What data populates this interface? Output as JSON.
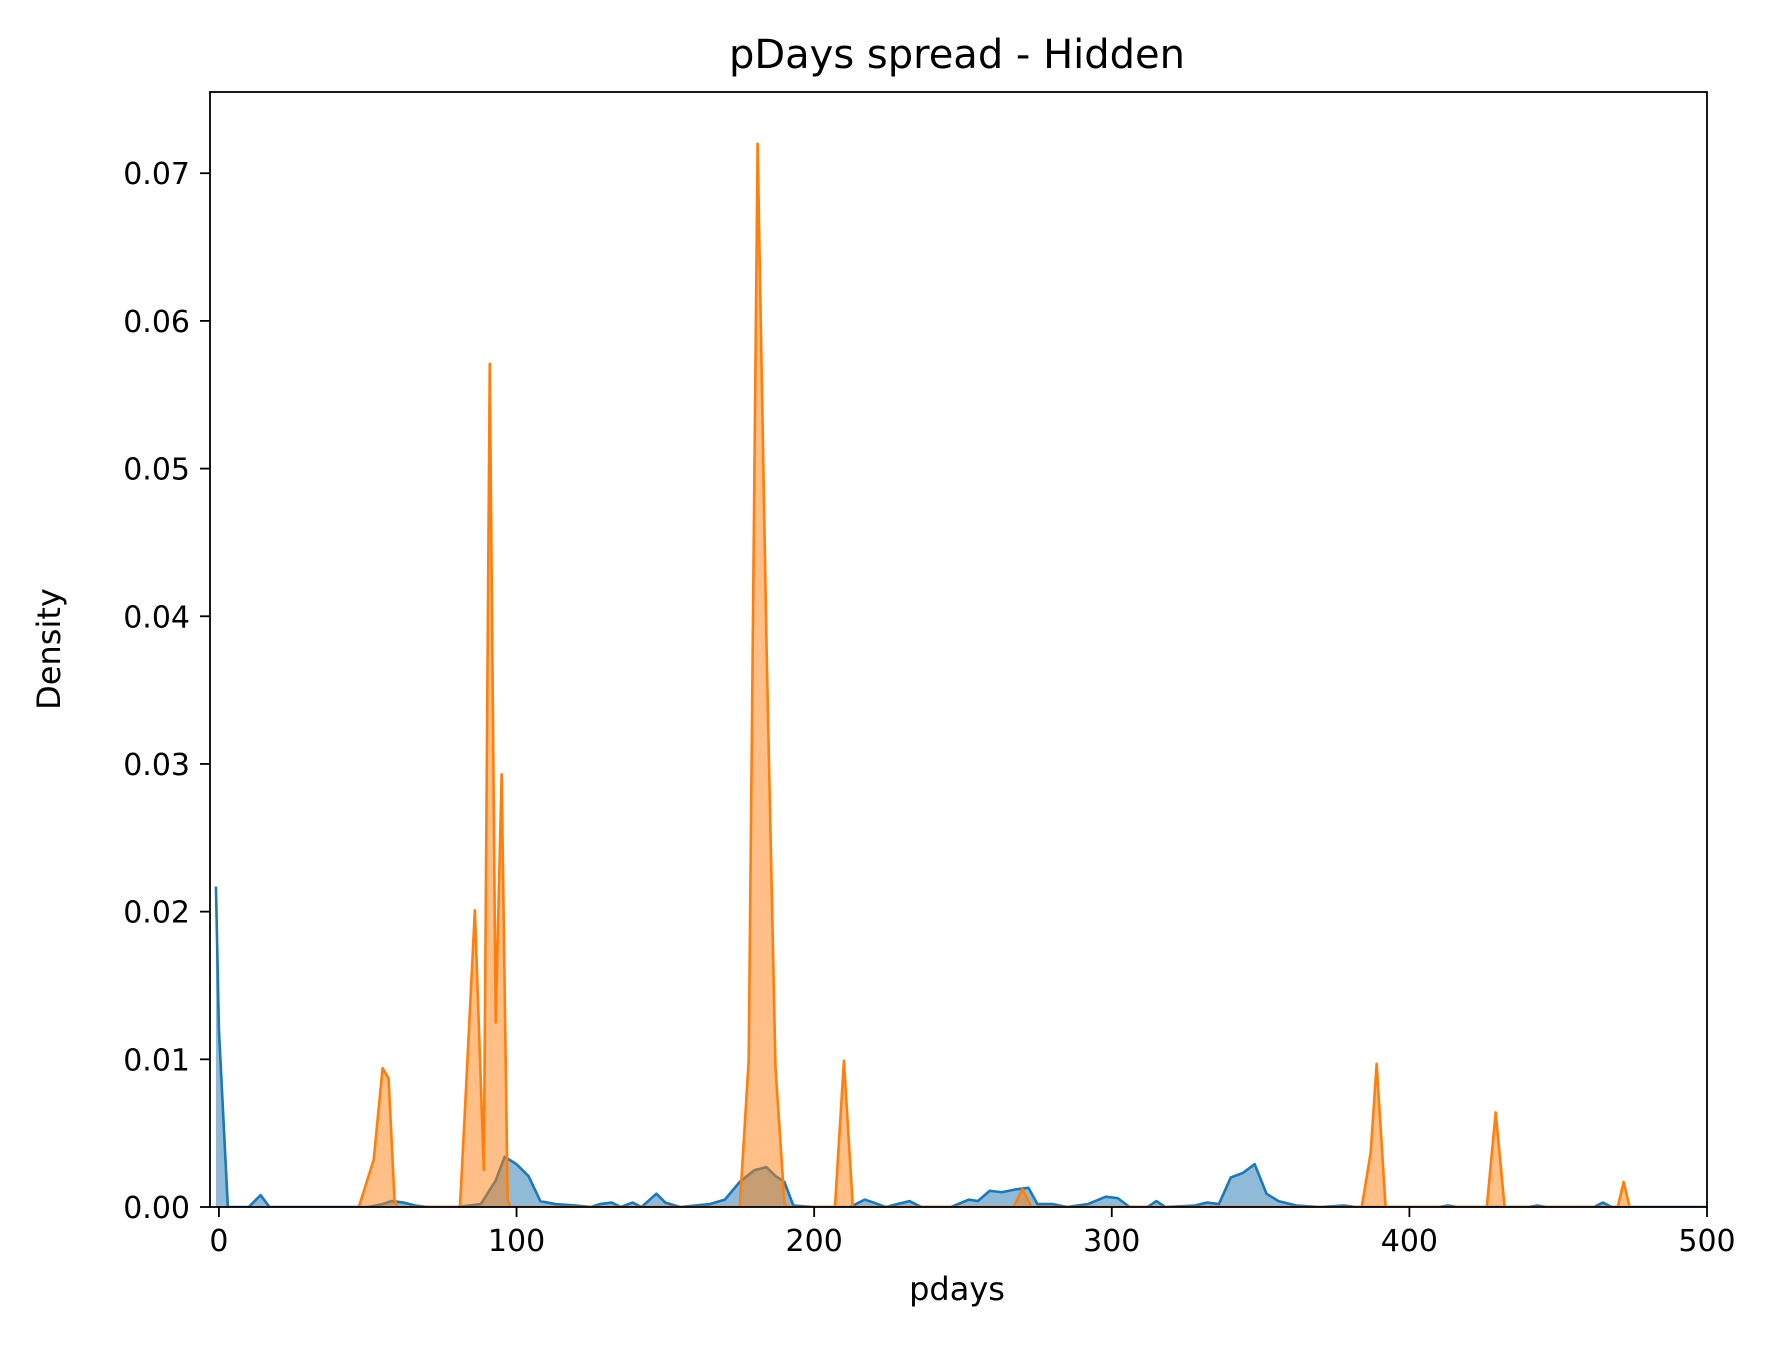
{
  "chart_data": {
    "type": "area",
    "title": "pDays spread - Hidden",
    "xlabel": "pdays",
    "ylabel": "Density",
    "xlim": [
      -3,
      500
    ],
    "ylim": [
      0,
      0.0755
    ],
    "xticks": [
      0,
      100,
      200,
      300,
      400,
      500
    ],
    "xtick_labels": [
      "0",
      "100",
      "200",
      "300",
      "400",
      "500"
    ],
    "yticks": [
      0,
      0.01,
      0.02,
      0.03,
      0.04,
      0.05,
      0.06,
      0.07
    ],
    "ytick_labels": [
      "0.00",
      "0.01",
      "0.02",
      "0.03",
      "0.04",
      "0.05",
      "0.06",
      "0.07"
    ],
    "grid": false,
    "series": [
      {
        "color": "#1f77b4",
        "fill_opacity": 0.5,
        "points": [
          [
            -1,
            0.0217
          ],
          [
            0,
            0.012
          ],
          [
            3,
            0
          ],
          [
            10,
            0
          ],
          [
            12,
            0.0004
          ],
          [
            14,
            0.0008
          ],
          [
            17,
            0
          ],
          [
            40,
            0
          ],
          [
            50,
            0
          ],
          [
            55,
            0.0002
          ],
          [
            58,
            0.0004
          ],
          [
            62,
            0.0003
          ],
          [
            66,
            0.0001
          ],
          [
            70,
            0
          ],
          [
            80,
            0
          ],
          [
            88,
            0.0002
          ],
          [
            93,
            0.0018
          ],
          [
            96,
            0.0034
          ],
          [
            100,
            0.0029
          ],
          [
            104,
            0.0021
          ],
          [
            108,
            0.0004
          ],
          [
            113,
            0.0002
          ],
          [
            120,
            0.0001
          ],
          [
            125,
            0
          ],
          [
            128,
            0.0002
          ],
          [
            132,
            0.0003
          ],
          [
            135,
            0
          ],
          [
            139,
            0.0003
          ],
          [
            142,
            0
          ],
          [
            147,
            0.0009
          ],
          [
            150,
            0.0003
          ],
          [
            155,
            0
          ],
          [
            165,
            0.0002
          ],
          [
            170,
            0.0005
          ],
          [
            175,
            0.0017
          ],
          [
            180,
            0.0025
          ],
          [
            184,
            0.0027
          ],
          [
            187,
            0.0021
          ],
          [
            190,
            0.0017
          ],
          [
            193,
            0.0001
          ],
          [
            200,
            0
          ],
          [
            212,
            0
          ],
          [
            217,
            0.0005
          ],
          [
            220,
            0.0003
          ],
          [
            224,
            0
          ],
          [
            232,
            0.0004
          ],
          [
            236,
            0
          ],
          [
            246,
            0
          ],
          [
            252,
            0.0005
          ],
          [
            255,
            0.0004
          ],
          [
            259,
            0.0011
          ],
          [
            263,
            0.001
          ],
          [
            268,
            0.0012
          ],
          [
            272,
            0.0013
          ],
          [
            275,
            0.0002
          ],
          [
            280,
            0.0002
          ],
          [
            285,
            0
          ],
          [
            292,
            0.0002
          ],
          [
            298,
            0.0007
          ],
          [
            302,
            0.0006
          ],
          [
            306,
            0
          ],
          [
            312,
            0
          ],
          [
            315,
            0.0004
          ],
          [
            318,
            0
          ],
          [
            328,
            0.0001
          ],
          [
            332,
            0.0003
          ],
          [
            336,
            0.0002
          ],
          [
            340,
            0.002
          ],
          [
            344,
            0.0023
          ],
          [
            348,
            0.0029
          ],
          [
            352,
            0.0009
          ],
          [
            356,
            0.0004
          ],
          [
            362,
            0.0001
          ],
          [
            370,
            0
          ],
          [
            378,
            0.0001
          ],
          [
            382,
            0
          ],
          [
            410,
            0
          ],
          [
            413,
            0.0001
          ],
          [
            416,
            0
          ],
          [
            440,
            0
          ],
          [
            443,
            0.0001
          ],
          [
            446,
            0
          ],
          [
            462,
            0
          ],
          [
            465,
            0.0003
          ],
          [
            468,
            0
          ],
          [
            500,
            0
          ]
        ]
      },
      {
        "color": "#ff7f0e",
        "fill_opacity": 0.5,
        "points": [
          [
            47,
            0
          ],
          [
            52,
            0.0032
          ],
          [
            55,
            0.0094
          ],
          [
            57,
            0.0087
          ],
          [
            59,
            0.0005
          ],
          [
            60,
            0
          ],
          [
            81,
            0
          ],
          [
            83,
            0.0079
          ],
          [
            86,
            0.0201
          ],
          [
            89,
            0.0025
          ],
          [
            91,
            0.0571
          ],
          [
            93,
            0.0125
          ],
          [
            95,
            0.0293
          ],
          [
            97,
            0.0005
          ],
          [
            98,
            0
          ],
          [
            175,
            0
          ],
          [
            178,
            0.0099
          ],
          [
            181,
            0.072
          ],
          [
            184,
            0.038
          ],
          [
            187,
            0.0095
          ],
          [
            190,
            0.0003
          ],
          [
            191,
            0
          ],
          [
            207,
            0
          ],
          [
            210,
            0.0099
          ],
          [
            213,
            0
          ],
          [
            267,
            0
          ],
          [
            270,
            0.0012
          ],
          [
            273,
            0
          ],
          [
            384,
            0
          ],
          [
            387,
            0.0037
          ],
          [
            389,
            0.0097
          ],
          [
            392,
            0
          ],
          [
            426,
            0
          ],
          [
            429,
            0.0064
          ],
          [
            432,
            0
          ],
          [
            470,
            0
          ],
          [
            472,
            0.0017
          ],
          [
            474,
            0
          ]
        ]
      }
    ]
  }
}
